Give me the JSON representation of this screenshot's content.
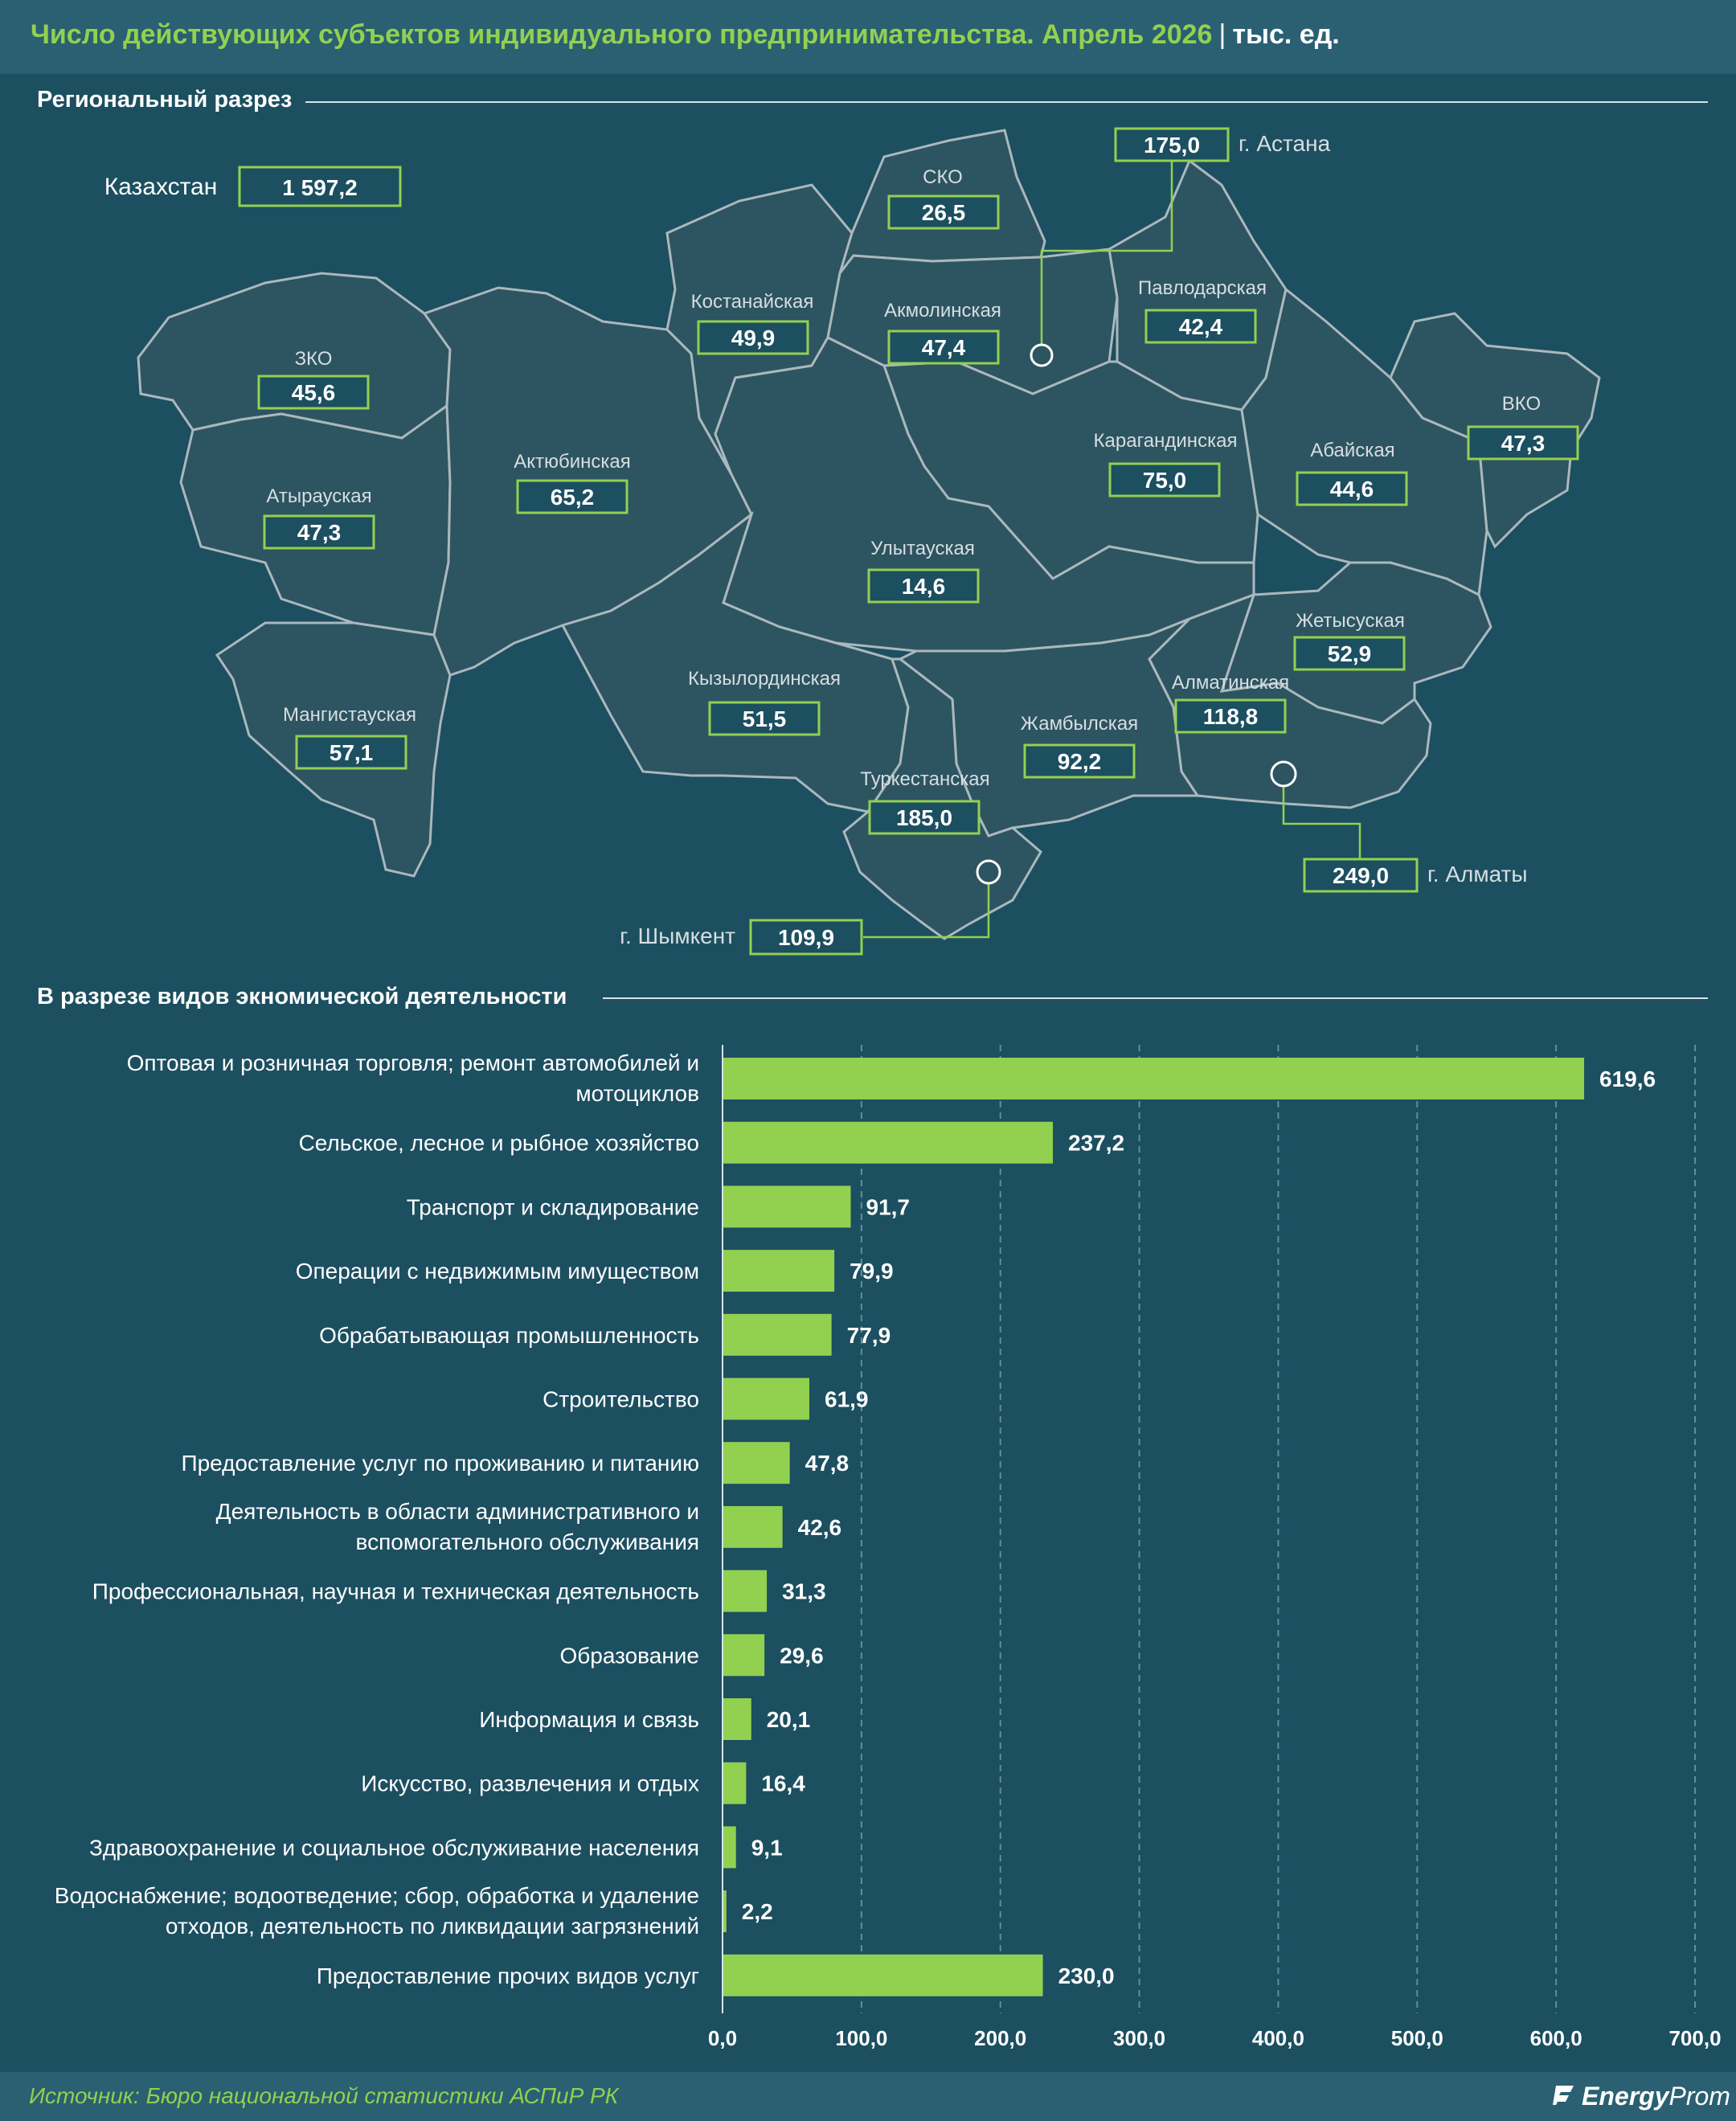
{
  "header": {
    "title": "Число действующих субъектов индивидуального предпринимательства. Апрель 2026",
    "separator": "|",
    "unit": "тыс. ед."
  },
  "sections": {
    "regional": "Региональный разрез",
    "activity": "В разрезе видов экномической деятельности"
  },
  "map": {
    "kazakhstan": {
      "label": "Казахстан",
      "value": "1 597,2"
    },
    "regions": [
      {
        "id": "zko",
        "name": "ЗКО",
        "value": "45,6"
      },
      {
        "id": "atyrau",
        "name": "Атырауская",
        "value": "47,3"
      },
      {
        "id": "mangistau",
        "name": "Мангистауская",
        "value": "57,1"
      },
      {
        "id": "aktobe",
        "name": "Актюбинская",
        "value": "65,2"
      },
      {
        "id": "kostanay",
        "name": "Костанайская",
        "value": "49,9"
      },
      {
        "id": "sko",
        "name": "СКО",
        "value": "26,5"
      },
      {
        "id": "akmola",
        "name": "Акмолинская",
        "value": "47,4"
      },
      {
        "id": "pavlodar",
        "name": "Павлодарская",
        "value": "42,4"
      },
      {
        "id": "karaganda",
        "name": "Карагандинская",
        "value": "75,0"
      },
      {
        "id": "abai",
        "name": "Абайская",
        "value": "44,6"
      },
      {
        "id": "vko",
        "name": "ВКО",
        "value": "47,3"
      },
      {
        "id": "ulytau",
        "name": "Улытауская",
        "value": "14,6"
      },
      {
        "id": "zhetisu",
        "name": "Жетысуская",
        "value": "52,9"
      },
      {
        "id": "kyzylorda",
        "name": "Кызылординская",
        "value": "51,5"
      },
      {
        "id": "almaty_obl",
        "name": "Алматинская",
        "value": "118,8"
      },
      {
        "id": "zhambyl",
        "name": "Жамбылская",
        "value": "92,2"
      },
      {
        "id": "turkestan",
        "name": "Туркестанская",
        "value": "185,0"
      }
    ],
    "cities": [
      {
        "id": "astana",
        "name": "г. Астана",
        "value": "175,0"
      },
      {
        "id": "almaty",
        "name": "г. Алматы",
        "value": "249,0"
      },
      {
        "id": "shymkent",
        "name": "г. Шымкент",
        "value": "109,9"
      }
    ]
  },
  "chart_data": {
    "type": "bar",
    "orientation": "horizontal",
    "categories": [
      [
        "Оптовая и розничная торговля; ремонт автомобилей и",
        "мотоциклов"
      ],
      [
        "Сельское, лесное и рыбное хозяйство"
      ],
      [
        "Транспорт и складирование"
      ],
      [
        "Операции с недвижимым имуществом"
      ],
      [
        "Обрабатывающая промышленность"
      ],
      [
        "Строительство"
      ],
      [
        "Предоставление услуг по проживанию и питанию"
      ],
      [
        "Деятельность в области административного и",
        "вспомогательного обслуживания"
      ],
      [
        "Профессиональная, научная и техническая деятельность"
      ],
      [
        "Образование"
      ],
      [
        "Информация и связь"
      ],
      [
        "Искусство, развлечения и отдых"
      ],
      [
        "Здравоохранение и социальное обслуживание населения"
      ],
      [
        "Водоснабжение; водоотведение; сбор, обработка и удаление",
        "отходов, деятельность по ликвидации загрязнений"
      ],
      [
        "Предоставление прочих видов услуг"
      ]
    ],
    "values": [
      619.6,
      237.2,
      91.7,
      79.9,
      77.9,
      61.9,
      47.8,
      42.6,
      31.3,
      29.6,
      20.1,
      16.4,
      9.1,
      2.2,
      230.0
    ],
    "value_labels": [
      "619,6",
      "237,2",
      "91,7",
      "79,9",
      "77,9",
      "61,9",
      "47,8",
      "42,6",
      "31,3",
      "29,6",
      "20,1",
      "16,4",
      "9,1",
      "2,2",
      "230,0"
    ],
    "xlim": [
      0,
      700
    ],
    "xticks": [
      0,
      100,
      200,
      300,
      400,
      500,
      600,
      700
    ],
    "xtick_labels": [
      "0,0",
      "100,0",
      "200,0",
      "300,0",
      "400,0",
      "500,0",
      "600,0",
      "700,0"
    ],
    "grid": true,
    "bar_color": "#92d050"
  },
  "footer": {
    "source": "Источник: Бюро национальной статистики АСПиР РК",
    "logo_strong": "Energy",
    "logo_light": "Prom"
  },
  "colors": {
    "background": "#1c4f60",
    "band": "#2a6072",
    "accent": "#92d050",
    "region_fill": "#2d5461",
    "region_border": "#aab8bd"
  }
}
